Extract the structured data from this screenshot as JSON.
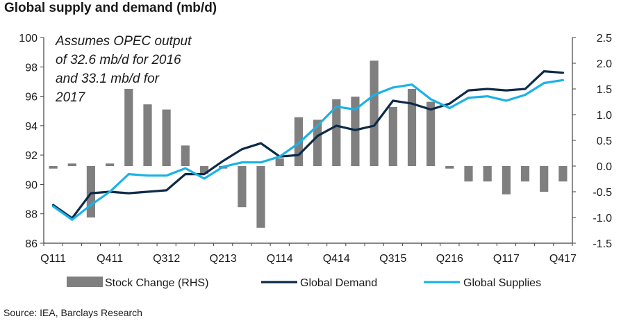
{
  "title": "Global supply and demand (mb/d)",
  "annotation": "Assumes OPEC output\nof 32.6 mb/d for 2016\nand 33.1 mb/d for\n2017",
  "source": "Source: IEA, Barclays Research",
  "colors": {
    "stock_change": "#7f7f7f",
    "global_demand": "#0d2a47",
    "global_supplies": "#1ab2e6",
    "axis": "#404040",
    "text": "#1a1a1a"
  },
  "chart_data": {
    "type": "bar+line",
    "title": "Global supply and demand (mb/d)",
    "x_tick_labels": [
      "Q111",
      "Q411",
      "Q312",
      "Q213",
      "Q114",
      "Q414",
      "Q315",
      "Q216",
      "Q117",
      "Q417"
    ],
    "x_tick_positions": [
      0,
      3,
      6,
      9,
      12,
      15,
      18,
      21,
      24,
      27
    ],
    "quarters": [
      "Q111",
      "Q211",
      "Q311",
      "Q411",
      "Q112",
      "Q212",
      "Q312",
      "Q412",
      "Q113",
      "Q213",
      "Q313",
      "Q413",
      "Q114",
      "Q214",
      "Q314",
      "Q414",
      "Q115",
      "Q215",
      "Q315",
      "Q415",
      "Q116",
      "Q216",
      "Q316",
      "Q416",
      "Q117",
      "Q217",
      "Q317",
      "Q417"
    ],
    "y_left": {
      "label": "",
      "range": [
        86,
        100
      ],
      "ticks": [
        86,
        88,
        90,
        92,
        94,
        96,
        98,
        100
      ]
    },
    "y_right": {
      "label": "",
      "range": [
        -1.5,
        2.5
      ],
      "ticks": [
        "2.5",
        "2.0",
        "1.5",
        "1.0",
        "0.5",
        "0.0",
        "-0.5",
        "-1.0",
        "-1.5"
      ],
      "tick_values": [
        2.5,
        2.0,
        1.5,
        1.0,
        0.5,
        0.0,
        -0.5,
        -1.0,
        -1.5
      ]
    },
    "legend": {
      "placement": "bottom",
      "entries": [
        "Stock Change (RHS)",
        "Global Demand",
        "Global Supplies"
      ]
    },
    "grid": false,
    "series": [
      {
        "name": "Stock Change (RHS)",
        "type": "bar",
        "axis": "right",
        "values": [
          -0.05,
          0.05,
          -1.0,
          0.05,
          1.5,
          1.2,
          1.1,
          0.4,
          -0.15,
          -0.05,
          -0.8,
          -1.2,
          0.15,
          0.95,
          0.9,
          1.3,
          1.35,
          2.05,
          1.15,
          1.5,
          1.25,
          -0.05,
          -0.3,
          -0.3,
          -0.55,
          -0.3,
          -0.5,
          -0.3
        ]
      },
      {
        "name": "Global Demand",
        "type": "line",
        "axis": "left",
        "values": [
          88.6,
          87.7,
          89.4,
          89.5,
          89.4,
          89.5,
          89.6,
          90.7,
          90.7,
          91.6,
          92.4,
          92.8,
          91.9,
          92.0,
          93.3,
          94.0,
          93.7,
          94.0,
          95.7,
          95.5,
          95.1,
          95.5,
          96.4,
          96.5,
          96.4,
          96.5,
          97.7,
          97.6
        ]
      },
      {
        "name": "Global Supplies",
        "type": "line",
        "axis": "left",
        "values": [
          88.5,
          87.6,
          88.6,
          89.5,
          90.7,
          90.6,
          90.6,
          91.1,
          90.4,
          91.2,
          91.5,
          91.5,
          91.9,
          92.8,
          94.0,
          95.3,
          95.1,
          96.1,
          96.6,
          96.8,
          95.8,
          95.2,
          95.9,
          96.0,
          95.7,
          96.1,
          96.9,
          97.1
        ]
      }
    ]
  }
}
